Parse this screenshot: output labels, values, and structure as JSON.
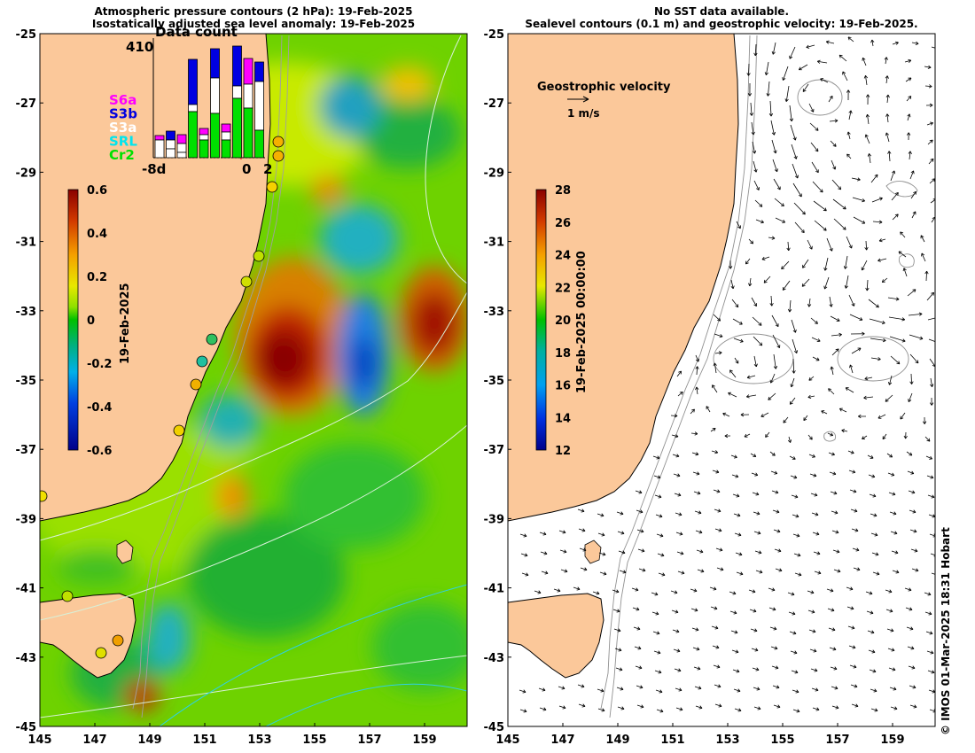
{
  "left_panel": {
    "title_line1": "Atmospheric pressure contours (2 hPa): 19-Feb-2025",
    "title_line2": "Isostatically adjusted sea level anomaly: 19-Feb-2025",
    "y_ticks": [
      "-25",
      "-27",
      "-29",
      "-31",
      "-33",
      "-35",
      "-37",
      "-39",
      "-41",
      "-43",
      "-45"
    ],
    "x_ticks": [
      "145",
      "147",
      "149",
      "151",
      "153",
      "155",
      "157",
      "159"
    ],
    "colorbar": {
      "ticks": [
        "0.6",
        "0.4",
        "0.2",
        "0",
        "-0.2",
        "-0.4",
        "-0.6"
      ],
      "label": "19-Feb-2025",
      "range": [
        -0.6,
        0.6
      ]
    },
    "data_count": {
      "title": "Data count",
      "max_label": "410",
      "x_labels": [
        "-8d",
        "0",
        "2"
      ],
      "legend": [
        {
          "label": "S6a",
          "color": "#ff00ff"
        },
        {
          "label": "S3b",
          "color": "#0000e0"
        },
        {
          "label": "S3a",
          "color": "#ffffff"
        },
        {
          "label": "SRL",
          "color": "#00e5ee"
        },
        {
          "label": "Cr2",
          "color": "#00e000"
        }
      ]
    }
  },
  "right_panel": {
    "title_line1": "No SST data available.",
    "title_line2": "Sealevel contours (0.1 m) and geostrophic velocity: 19-Feb-2025.",
    "y_ticks": [
      "-25",
      "-27",
      "-29",
      "-31",
      "-33",
      "-35",
      "-37",
      "-39",
      "-41",
      "-43",
      "-45"
    ],
    "x_ticks": [
      "145",
      "147",
      "149",
      "151",
      "153",
      "155",
      "157",
      "159"
    ],
    "legend_title": "Geostrophic velocity",
    "legend_scale": "1 m/s",
    "colorbar": {
      "ticks": [
        "28",
        "26",
        "24",
        "22",
        "20",
        "18",
        "16",
        "14",
        "12"
      ],
      "label": "19-Feb-2025 00:00:00",
      "range": [
        12,
        28
      ]
    }
  },
  "copyright": "© IMOS 01-Mar-2025 18:31 Hobart",
  "colors": {
    "land": "#fbc89a",
    "sla_high": "#a01800",
    "sla_low": "#0000a0",
    "sla_zero": "#00c000"
  }
}
